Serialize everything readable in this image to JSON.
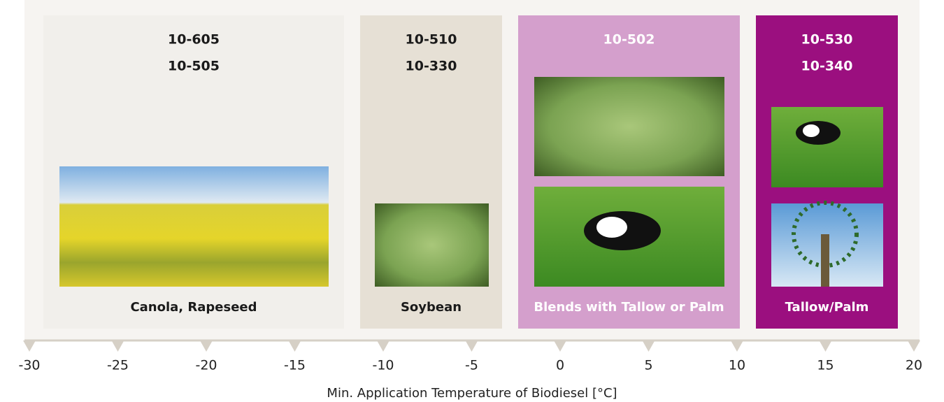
{
  "columns": [
    {
      "codes": [
        "10-605",
        "10-505"
      ],
      "label": "Canola, Rapeseed"
    },
    {
      "codes": [
        "10-510",
        "10-330"
      ],
      "label": "Soybean"
    },
    {
      "codes": [
        "10-502"
      ],
      "label": "Blends with Tallow or Palm"
    },
    {
      "codes": [
        "10-530",
        "10-340"
      ],
      "label": "Tallow/Palm"
    }
  ],
  "axis": {
    "ticks": [
      -30,
      -25,
      -20,
      -15,
      -10,
      -5,
      0,
      5,
      10,
      15,
      20
    ],
    "label": "Min. Application Temperature of Biodiesel [°C]"
  }
}
